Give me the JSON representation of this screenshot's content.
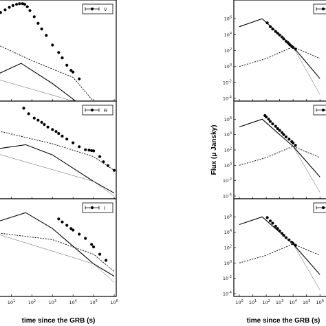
{
  "chart_data": [
    {
      "type": "line",
      "panel": "left-top",
      "scale": "log-log",
      "xlim": [
        1,
        1000000
      ],
      "legend": {
        "label": "V",
        "placement": "top-right"
      },
      "xticks": [
        "10^1",
        "10^2",
        "10^3",
        "10^4",
        "10^5",
        "10^6"
      ],
      "yticks": [],
      "series": [
        {
          "name": "V",
          "style": "points",
          "x": [
            2,
            3,
            5,
            8,
            12,
            18,
            25,
            35,
            45,
            60,
            80,
            130,
            200,
            300,
            500,
            1000,
            2000,
            3000,
            5000,
            8000,
            10000,
            20000
          ],
          "y": [
            1000,
            1500,
            2200,
            3200,
            4200,
            5000,
            5500,
            5600,
            5000,
            3500,
            2000,
            800,
            300,
            130,
            50,
            12,
            4,
            1.8,
            0.6,
            0.28,
            0.22,
            0.08
          ]
        },
        {
          "style": "solid",
          "x": [
            1,
            30,
            1000,
            100000,
            1000000
          ],
          "y": [
            0.1,
            0.8,
            0.04,
            0.0004,
            2e-05
          ]
        },
        {
          "style": "dashed",
          "x": [
            1,
            100,
            10000,
            1000000
          ],
          "y": [
            20,
            1.2,
            0.1,
            8e-05
          ]
        },
        {
          "style": "thin",
          "x": [
            1,
            10000,
            1000000
          ],
          "y": [
            0.1,
            0.003,
            3e-06
          ]
        }
      ]
    },
    {
      "type": "line",
      "panel": "left-middle",
      "scale": "log-log",
      "xlim": [
        1,
        1000000
      ],
      "legend": {
        "label": "R",
        "placement": "top-right"
      },
      "xticks": [
        "10^1",
        "10^2",
        "10^3",
        "10^4",
        "10^5",
        "10^6"
      ],
      "yticks": [],
      "series": [
        {
          "name": "R",
          "style": "points",
          "x": [
            40,
            70,
            130,
            200,
            300,
            400,
            600,
            1000,
            1500,
            2000,
            3000,
            5000,
            10000,
            20000,
            40000,
            60000,
            80000,
            100000,
            200000,
            300000,
            500000,
            1000000
          ],
          "y": [
            8000,
            2200,
            800,
            500,
            300,
            180,
            100,
            55,
            35,
            22,
            12,
            6,
            2.5,
            1,
            0.5,
            0.45,
            0.4,
            0.38,
            0.1,
            0.03,
            0.012,
            0.004
          ]
        },
        {
          "style": "solid",
          "x": [
            1,
            50,
            1000,
            100000,
            1000000
          ],
          "y": [
            0.5,
            1.6,
            0.15,
            0.0003,
            2e-05
          ]
        },
        {
          "style": "dashed",
          "x": [
            1,
            1000,
            100000,
            1000000
          ],
          "y": [
            60,
            2,
            0.1,
            0.004
          ]
        },
        {
          "style": "thin",
          "x": [
            1,
            100000,
            1000000
          ],
          "y": [
            0.3,
            0.0003,
            1e-05
          ]
        }
      ]
    },
    {
      "type": "line",
      "panel": "left-bottom",
      "scale": "log-log",
      "xlim": [
        1,
        1000000
      ],
      "legend": {
        "label": "I",
        "placement": "top-right"
      },
      "xticks": [
        "10^1",
        "10^2",
        "10^3",
        "10^4",
        "10^5",
        "10^6"
      ],
      "yticks": [],
      "xlabel": "time since the GRB (s)",
      "series": [
        {
          "name": "I",
          "style": "points",
          "x": [
            2000,
            3000,
            5000,
            8000,
            10000,
            20000,
            40000,
            80000,
            100000,
            200000,
            400000
          ],
          "y": [
            200,
            130,
            80,
            50,
            40,
            22,
            12,
            5,
            3.5,
            1.2,
            0.5
          ]
        },
        {
          "style": "solid",
          "x": [
            1,
            50,
            1000,
            100000,
            1000000
          ],
          "y": [
            100,
            500,
            50,
            0.3,
            0.05
          ]
        },
        {
          "style": "dashed",
          "x": [
            1,
            1000,
            100000,
            1000000
          ],
          "y": [
            30,
            10,
            1.2,
            0.1
          ]
        },
        {
          "style": "thin",
          "x": [
            1,
            100000,
            1000000
          ],
          "y": [
            30,
            0.3,
            0.02
          ]
        }
      ]
    },
    {
      "type": "line",
      "panel": "right-top",
      "scale": "log-log",
      "xlim": [
        1,
        1000000
      ],
      "ylim": [
        0.0001,
        100000000
      ],
      "legend": {
        "label": "",
        "placement": "top-right"
      },
      "xticks": [
        "10^0",
        "10^1",
        "10^2",
        "10^3",
        "10^4",
        "10^5",
        "10^6"
      ],
      "yticks": [
        "10^-4",
        "10^-2",
        "10^0",
        "10^2",
        "10^4",
        "10^6"
      ],
      "series": [
        {
          "style": "points",
          "x": [
            120,
            200,
            300,
            500,
            700,
            1000,
            1500,
            2000,
            3000,
            4000,
            5000,
            6000,
            8000,
            10000,
            15000
          ],
          "y": [
            300000,
            100000,
            50000,
            25000,
            15000,
            9000,
            5000,
            3000,
            1500,
            1000,
            700,
            500,
            350,
            250,
            150
          ]
        },
        {
          "style": "solid",
          "x": [
            1,
            50,
            1000,
            10000,
            100000,
            1000000
          ],
          "y": [
            100000,
            1000000,
            10000,
            300,
            3,
            0.03
          ]
        },
        {
          "style": "dashed",
          "x": [
            1,
            100,
            10000,
            1000000
          ],
          "y": [
            1,
            10,
            300,
            10
          ]
        },
        {
          "style": "thin",
          "x": [
            1000,
            10000,
            100000,
            1000000
          ],
          "y": [
            10000,
            300,
            0.3,
            0.0003
          ]
        }
      ]
    },
    {
      "type": "line",
      "panel": "right-middle",
      "scale": "log-log",
      "xlim": [
        1,
        1000000
      ],
      "ylim": [
        0.0001,
        100000000
      ],
      "legend": {
        "label": "",
        "placement": "top-right"
      },
      "xticks": [
        "10^0",
        "10^1",
        "10^2",
        "10^3",
        "10^4",
        "10^5",
        "10^6"
      ],
      "yticks": [
        "10^-4",
        "10^-2",
        "10^0",
        "10^2",
        "10^4",
        "10^6"
      ],
      "ylabel": "Flux (μ Jansky)",
      "series": [
        {
          "style": "points",
          "x": [
            80,
            100,
            150,
            200,
            300,
            500,
            700,
            1000,
            1500,
            2000,
            3000,
            5000,
            8000,
            10000,
            15000
          ],
          "y": [
            3000000,
            2000000,
            1000000,
            500000,
            250000,
            120000,
            60000,
            35000,
            18000,
            10000,
            5000,
            2500,
            1200,
            800,
            400
          ]
        },
        {
          "style": "solid",
          "x": [
            1,
            50,
            1000,
            10000,
            100000,
            1000000
          ],
          "y": [
            100000,
            1000000,
            10000,
            300,
            3,
            0.03
          ]
        },
        {
          "style": "dashed",
          "x": [
            1,
            100,
            10000,
            1000000
          ],
          "y": [
            1,
            10,
            300,
            10
          ]
        },
        {
          "style": "thin",
          "x": [
            1000,
            10000,
            100000,
            1000000
          ],
          "y": [
            10000,
            300,
            0.3,
            0.0003
          ]
        }
      ]
    },
    {
      "type": "line",
      "panel": "right-bottom",
      "scale": "log-log",
      "xlim": [
        1,
        1000000
      ],
      "ylim": [
        0.0001,
        100000000
      ],
      "legend": {
        "label": "",
        "placement": "top-right"
      },
      "xticks": [
        "10^0",
        "10^1",
        "10^2",
        "10^3",
        "10^4",
        "10^5",
        "10^6"
      ],
      "yticks": [
        "10^-4",
        "10^-2",
        "10^0",
        "10^2",
        "10^4",
        "10^6"
      ],
      "xlabel": "time since the GRB (s)",
      "series": [
        {
          "style": "points",
          "x": [
            120,
            200,
            300,
            500,
            700,
            1000,
            1500,
            2000,
            3000,
            5000,
            8000,
            10000,
            15000
          ],
          "y": [
            800000,
            300000,
            150000,
            60000,
            30000,
            15000,
            7000,
            4000,
            2000,
            1000,
            500,
            350,
            200
          ]
        },
        {
          "style": "solid",
          "x": [
            1,
            50,
            1000,
            10000,
            100000,
            1000000
          ],
          "y": [
            100000,
            1000000,
            10000,
            300,
            3,
            0.03
          ]
        },
        {
          "style": "dashed",
          "x": [
            1,
            100,
            10000,
            1000000
          ],
          "y": [
            1,
            10,
            300,
            10
          ]
        },
        {
          "style": "thin",
          "x": [
            1000,
            10000,
            100000,
            1000000
          ],
          "y": [
            10000,
            300,
            0.3,
            0.0003
          ]
        }
      ]
    }
  ]
}
